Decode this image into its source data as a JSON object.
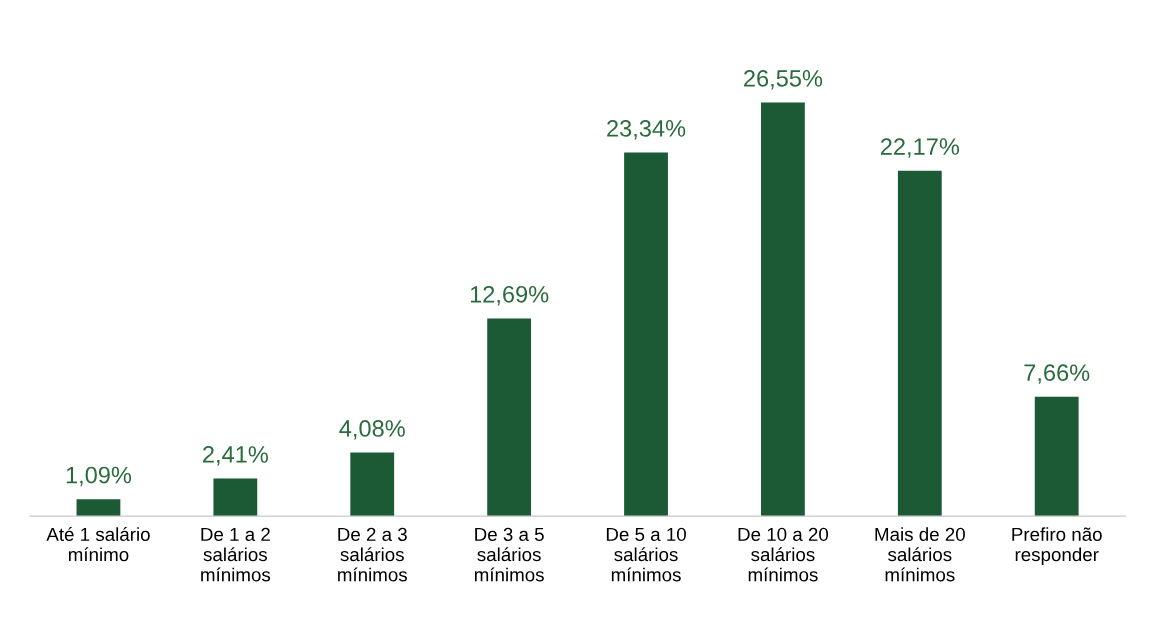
{
  "chart_data": {
    "type": "bar",
    "categories": [
      "Até 1 salário\nmínimo",
      "De 1 a 2\nsalários\nmínimos",
      "De 2 a 3\nsalários\nmínimos",
      "De 3 a 5\nsalários\nmínimos",
      "De 5 a 10\nsalários\nmínimos",
      "De 10 a 20\nsalários\nmínimos",
      "Mais de 20\nsalários\nmínimos",
      "Prefiro não\nresponder"
    ],
    "values": [
      1.09,
      2.41,
      4.08,
      12.69,
      23.34,
      26.55,
      22.17,
      7.66
    ],
    "value_labels": [
      "1,09%",
      "2,41%",
      "4,08%",
      "12,69%",
      "23,34%",
      "26,55%",
      "22,17%",
      "7,66%"
    ],
    "color": "#1b5a34",
    "grid": false,
    "legend": false
  }
}
